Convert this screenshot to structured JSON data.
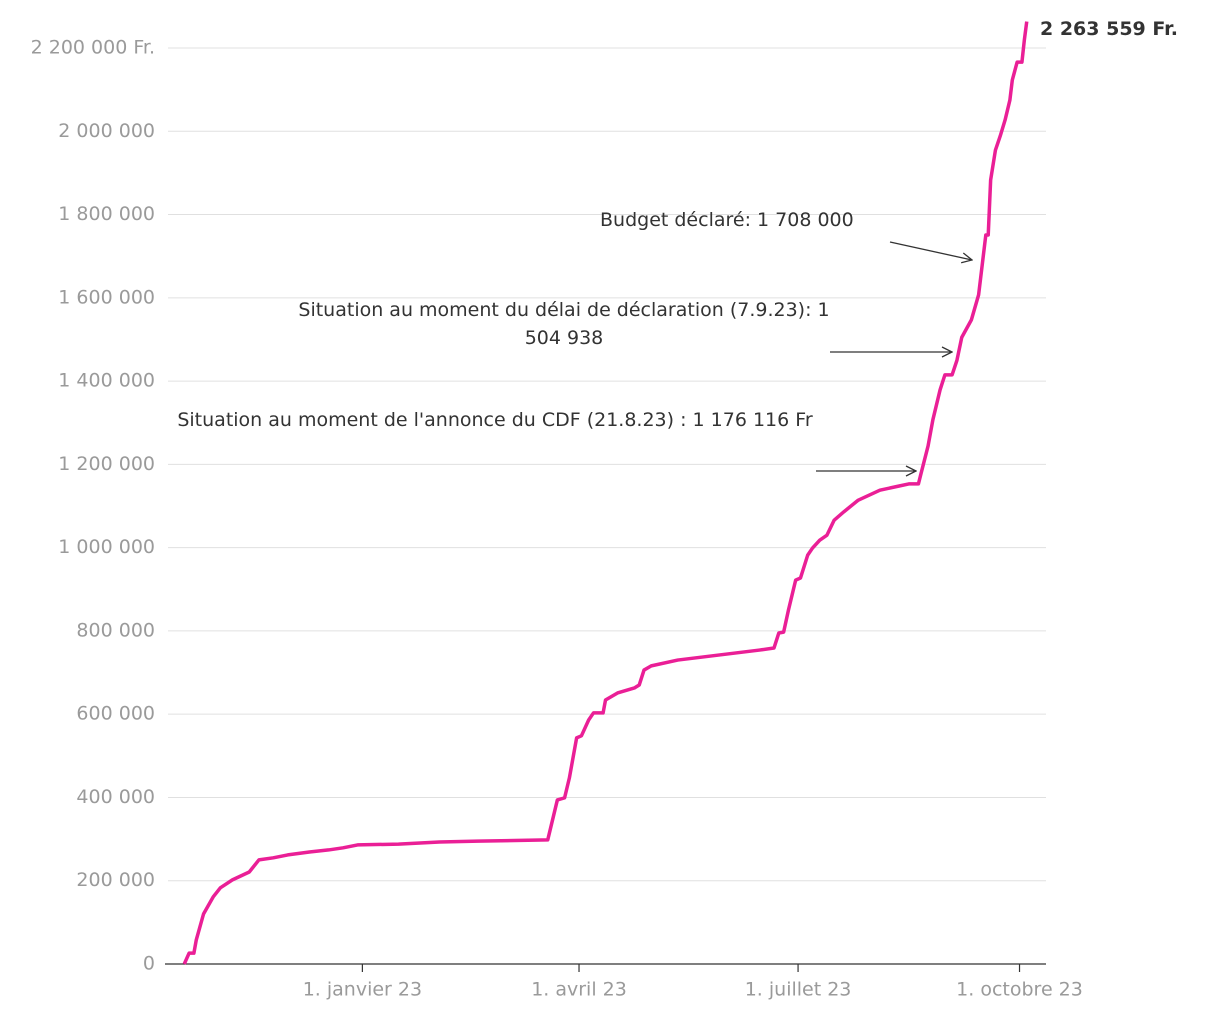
{
  "chart_data": {
    "type": "line",
    "x": [
      "2022-10-19",
      "2022-10-21",
      "2022-10-23",
      "2022-10-24",
      "2022-10-27",
      "2022-10-31",
      "2022-11-03",
      "2022-11-08",
      "2022-11-15",
      "2022-11-19",
      "2022-11-25",
      "2022-12-01",
      "2022-12-10",
      "2022-12-18",
      "2022-12-24",
      "2022-12-30",
      "2023-01-16",
      "2023-02-02",
      "2023-02-18",
      "2023-03-19",
      "2023-03-20",
      "2023-03-23",
      "2023-03-26",
      "2023-03-28",
      "2023-03-31",
      "2023-04-02",
      "2023-04-05",
      "2023-04-07",
      "2023-04-11",
      "2023-04-12",
      "2023-04-17",
      "2023-04-24",
      "2023-04-26",
      "2023-04-28",
      "2023-05-01",
      "2023-05-12",
      "2023-05-29",
      "2023-06-15",
      "2023-06-21",
      "2023-06-23",
      "2023-06-25",
      "2023-06-27",
      "2023-06-30",
      "2023-07-02",
      "2023-07-05",
      "2023-07-07",
      "2023-07-10",
      "2023-07-13",
      "2023-07-16",
      "2023-07-20",
      "2023-07-26",
      "2023-08-04",
      "2023-08-12",
      "2023-08-16",
      "2023-08-20",
      "2023-08-21",
      "2023-08-24",
      "2023-08-26",
      "2023-08-29",
      "2023-08-31",
      "2023-09-03",
      "2023-09-05",
      "2023-09-07",
      "2023-09-11",
      "2023-09-14",
      "2023-09-17",
      "2023-09-18",
      "2023-09-19",
      "2023-09-21",
      "2023-09-23",
      "2023-09-25",
      "2023-09-27",
      "2023-09-28",
      "2023-09-30",
      "2023-10-02",
      "2023-10-03",
      "2023-10-04"
    ],
    "series": [
      {
        "color": "#ea1f96",
        "values": [
          0,
          26000,
          26000,
          58000,
          120000,
          161000,
          183000,
          202000,
          221000,
          250000,
          255000,
          262000,
          269000,
          274000,
          279000,
          286000,
          288000,
          293000,
          295000,
          298000,
          322000,
          394000,
          399000,
          447000,
          543000,
          548000,
          586000,
          603000,
          603000,
          634000,
          651000,
          663000,
          670000,
          706000,
          716000,
          730000,
          742000,
          754000,
          759000,
          795000,
          797000,
          850000,
          922000,
          927000,
          982000,
          999000,
          1018000,
          1030000,
          1066000,
          1086000,
          1114000,
          1138000,
          1148000,
          1153000,
          1153000,
          1176116,
          1244000,
          1307000,
          1379000,
          1415000,
          1415000,
          1450000,
          1504938,
          1547000,
          1607000,
          1751000,
          1751000,
          1883000,
          1955000,
          1989000,
          2027000,
          2075000,
          2123000,
          2166000,
          2166000,
          2219000,
          2263559
        ]
      }
    ],
    "xlim": [
      "2022-10-11",
      "2023-10-12"
    ],
    "xticks": [
      {
        "value": "2023-01-01",
        "label": "1. janvier 23"
      },
      {
        "value": "2023-04-01",
        "label": "1. avril 23"
      },
      {
        "value": "2023-07-01",
        "label": "1. juillet 23"
      },
      {
        "value": "2023-10-01",
        "label": "1. octobre 23"
      }
    ],
    "ylim": [
      0,
      2200000
    ],
    "yticks": [
      0,
      {
        "value": 200000,
        "label": "200 000"
      },
      {
        "value": 400000,
        "label": "400 000"
      },
      {
        "value": 600000,
        "label": "600 000"
      },
      {
        "value": 800000,
        "label": "800 000"
      },
      {
        "value": 1000000,
        "label": "1 000 000"
      },
      {
        "value": 1200000,
        "label": "1 200 000"
      },
      {
        "value": 1400000,
        "label": "1 400 000"
      },
      {
        "value": 1600000,
        "label": "1 600 000"
      },
      {
        "value": 1800000,
        "label": "1 800 000"
      },
      {
        "value": 2000000,
        "label": "2 000 000"
      },
      {
        "value": 2200000,
        "label": "2 200 000 Fr."
      }
    ],
    "grid": true,
    "annotations": [
      "2 263 559 Fr.",
      "Budget déclaré: 1 708 000",
      "Situation au moment du délai de déclaration (7.9.23): 1 504 938",
      "Situation au moment de l'annonce du CDF (21.8.23) : 1 176 116 Fr"
    ]
  }
}
